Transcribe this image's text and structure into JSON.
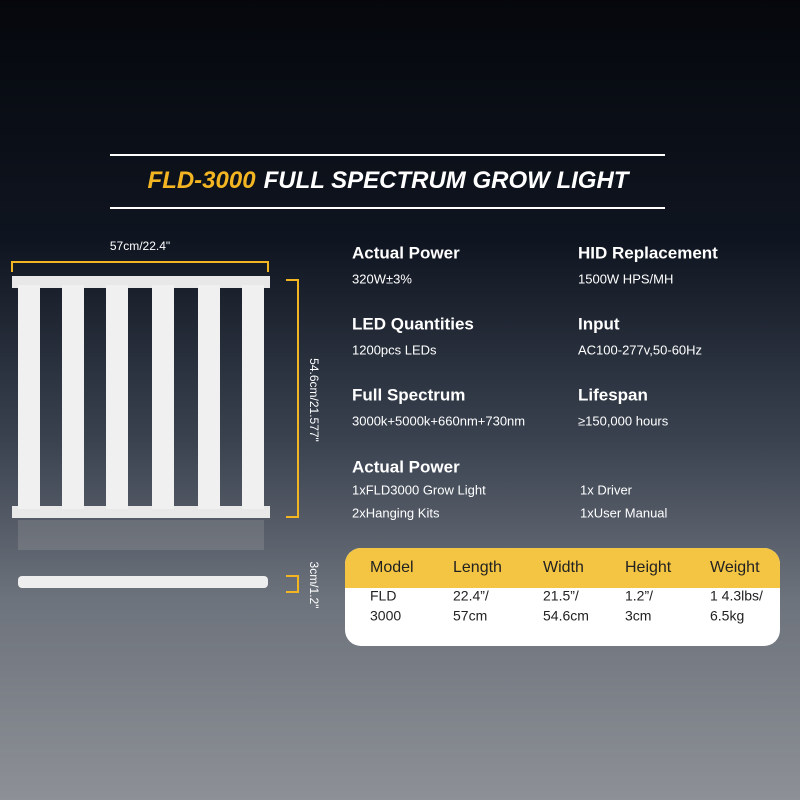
{
  "title": {
    "model": "FLD-3000",
    "rest": "FULL SPECTRUM GROW LIGHT"
  },
  "dimensions": {
    "width": "57cm/22.4\"",
    "height": "54.6cm/21.577\"",
    "depth": "3cm/1.2\""
  },
  "specs": [
    {
      "label": "Actual Power",
      "value": "320W±3%"
    },
    {
      "label": "HID Replacement",
      "value": "1500W HPS/MH"
    },
    {
      "label": "LED Quantities",
      "value": "1200pcs LEDs"
    },
    {
      "label": "Input",
      "value": "AC100-277v,50-60Hz"
    },
    {
      "label": "Full Spectrum",
      "value": "3000k+5000k+660nm+730nm"
    },
    {
      "label": "Lifespan",
      "value": "≥150,000 hours"
    }
  ],
  "package": {
    "label": "Actual Power",
    "items": [
      "1xFLD3000 Grow Light",
      "1x Driver",
      "2xHanging Kits",
      "1xUser Manual"
    ]
  },
  "table": {
    "header": [
      "Model",
      "Length",
      "Width",
      "Height",
      "Weight"
    ],
    "rows": [
      [
        [
          "FLD",
          "3000"
        ],
        [
          "22.4”/",
          "57cm"
        ],
        [
          "21.5”/",
          "54.6cm"
        ],
        [
          "1.2”/",
          "3cm"
        ],
        [
          "1 4.3lbs/",
          "6.5kg"
        ]
      ]
    ]
  }
}
